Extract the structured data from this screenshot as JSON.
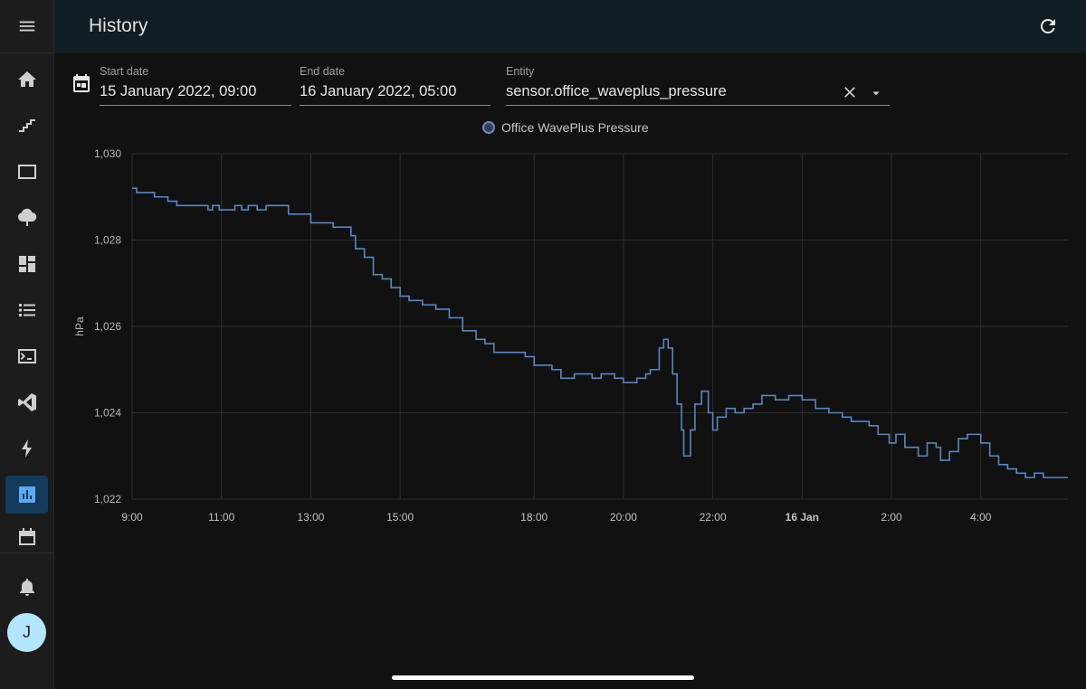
{
  "header": {
    "title": "History"
  },
  "user": {
    "initial": "J"
  },
  "sidebar": {
    "items": [
      {
        "name": "overview",
        "icon": "home-icon"
      },
      {
        "name": "energy",
        "icon": "stairs-icon"
      },
      {
        "name": "map",
        "icon": "screen-icon"
      },
      {
        "name": "logbook",
        "icon": "tree-icon"
      },
      {
        "name": "dashboard",
        "icon": "dashboard-icon"
      },
      {
        "name": "todo",
        "icon": "list-icon"
      },
      {
        "name": "terminal",
        "icon": "terminal-icon"
      },
      {
        "name": "vscode",
        "icon": "vscode-icon"
      },
      {
        "name": "esphome",
        "icon": "lightning-icon"
      },
      {
        "name": "history",
        "icon": "chart-box-icon",
        "active": true
      },
      {
        "name": "calendar",
        "icon": "calendar-icon"
      }
    ],
    "notifications_icon": "bell-icon"
  },
  "filters": {
    "start_label": "Start date",
    "start_value": "15 January 2022, 09:00",
    "end_label": "End date",
    "end_value": "16 January 2022, 05:00",
    "entity_label": "Entity",
    "entity_value": "sensor.office_waveplus_pressure"
  },
  "colors": {
    "line": "#5b86c0",
    "grid": "#2e2e2e",
    "accent": "#143a5c"
  },
  "chart_data": {
    "type": "line",
    "title": "",
    "ylabel": "hPa",
    "ylim": [
      1022,
      1030
    ],
    "yticks": [
      1022,
      1024,
      1026,
      1028,
      1030
    ],
    "ytick_labels": [
      "1,022",
      "1,024",
      "1,026",
      "1,028",
      "1,030"
    ],
    "xlim_hours": [
      9,
      29.95
    ],
    "xticks": [
      {
        "h": 9,
        "label": "9:00"
      },
      {
        "h": 11,
        "label": "11:00"
      },
      {
        "h": 13,
        "label": "13:00"
      },
      {
        "h": 15,
        "label": "15:00"
      },
      {
        "h": 18,
        "label": "18:00"
      },
      {
        "h": 20,
        "label": "20:00"
      },
      {
        "h": 22,
        "label": "22:00"
      },
      {
        "h": 24,
        "label": "16 Jan",
        "bold": true
      },
      {
        "h": 26,
        "label": "2:00"
      },
      {
        "h": 28,
        "label": "4:00"
      }
    ],
    "legend": "top-center",
    "series": [
      {
        "name": "Office WavePlus Pressure",
        "step": true,
        "points": [
          [
            9.0,
            1029.2
          ],
          [
            9.1,
            1029.1
          ],
          [
            9.5,
            1029.0
          ],
          [
            9.8,
            1028.9
          ],
          [
            10.0,
            1028.8
          ],
          [
            10.5,
            1028.8
          ],
          [
            10.7,
            1028.7
          ],
          [
            10.8,
            1028.8
          ],
          [
            10.95,
            1028.7
          ],
          [
            11.3,
            1028.8
          ],
          [
            11.45,
            1028.7
          ],
          [
            11.6,
            1028.8
          ],
          [
            11.8,
            1028.7
          ],
          [
            12.0,
            1028.8
          ],
          [
            12.3,
            1028.8
          ],
          [
            12.5,
            1028.6
          ],
          [
            12.8,
            1028.6
          ],
          [
            13.0,
            1028.4
          ],
          [
            13.3,
            1028.4
          ],
          [
            13.5,
            1028.3
          ],
          [
            13.9,
            1028.1
          ],
          [
            14.0,
            1027.8
          ],
          [
            14.2,
            1027.6
          ],
          [
            14.4,
            1027.2
          ],
          [
            14.6,
            1027.1
          ],
          [
            14.8,
            1026.9
          ],
          [
            15.0,
            1026.7
          ],
          [
            15.2,
            1026.6
          ],
          [
            15.5,
            1026.5
          ],
          [
            15.8,
            1026.4
          ],
          [
            16.1,
            1026.2
          ],
          [
            16.4,
            1025.9
          ],
          [
            16.7,
            1025.7
          ],
          [
            16.9,
            1025.6
          ],
          [
            17.1,
            1025.4
          ],
          [
            17.8,
            1025.3
          ],
          [
            18.0,
            1025.1
          ],
          [
            18.4,
            1025.0
          ],
          [
            18.6,
            1024.8
          ],
          [
            18.9,
            1024.9
          ],
          [
            19.3,
            1024.8
          ],
          [
            19.5,
            1024.9
          ],
          [
            19.8,
            1024.8
          ],
          [
            20.0,
            1024.7
          ],
          [
            20.1,
            1024.7
          ],
          [
            20.3,
            1024.8
          ],
          [
            20.5,
            1024.9
          ],
          [
            20.6,
            1025.0
          ],
          [
            20.8,
            1025.5
          ],
          [
            20.9,
            1025.7
          ],
          [
            21.0,
            1025.5
          ],
          [
            21.1,
            1024.9
          ],
          [
            21.2,
            1024.2
          ],
          [
            21.3,
            1023.6
          ],
          [
            21.35,
            1023.0
          ],
          [
            21.5,
            1023.6
          ],
          [
            21.6,
            1024.2
          ],
          [
            21.75,
            1024.5
          ],
          [
            21.9,
            1024.0
          ],
          [
            22.0,
            1023.6
          ],
          [
            22.1,
            1023.9
          ],
          [
            22.3,
            1024.1
          ],
          [
            22.5,
            1024.0
          ],
          [
            22.7,
            1024.1
          ],
          [
            22.9,
            1024.2
          ],
          [
            23.1,
            1024.4
          ],
          [
            23.4,
            1024.3
          ],
          [
            23.7,
            1024.4
          ],
          [
            24.0,
            1024.3
          ],
          [
            24.3,
            1024.1
          ],
          [
            24.6,
            1024.0
          ],
          [
            24.9,
            1023.9
          ],
          [
            25.1,
            1023.8
          ],
          [
            25.5,
            1023.7
          ],
          [
            25.7,
            1023.5
          ],
          [
            25.95,
            1023.3
          ],
          [
            26.1,
            1023.5
          ],
          [
            26.3,
            1023.2
          ],
          [
            26.6,
            1023.0
          ],
          [
            26.8,
            1023.3
          ],
          [
            27.0,
            1023.2
          ],
          [
            27.1,
            1022.9
          ],
          [
            27.3,
            1023.1
          ],
          [
            27.5,
            1023.4
          ],
          [
            27.7,
            1023.5
          ],
          [
            28.0,
            1023.3
          ],
          [
            28.2,
            1023.0
          ],
          [
            28.4,
            1022.8
          ],
          [
            28.6,
            1022.7
          ],
          [
            28.8,
            1022.6
          ],
          [
            29.0,
            1022.5
          ],
          [
            29.2,
            1022.6
          ],
          [
            29.4,
            1022.5
          ]
        ]
      }
    ]
  }
}
